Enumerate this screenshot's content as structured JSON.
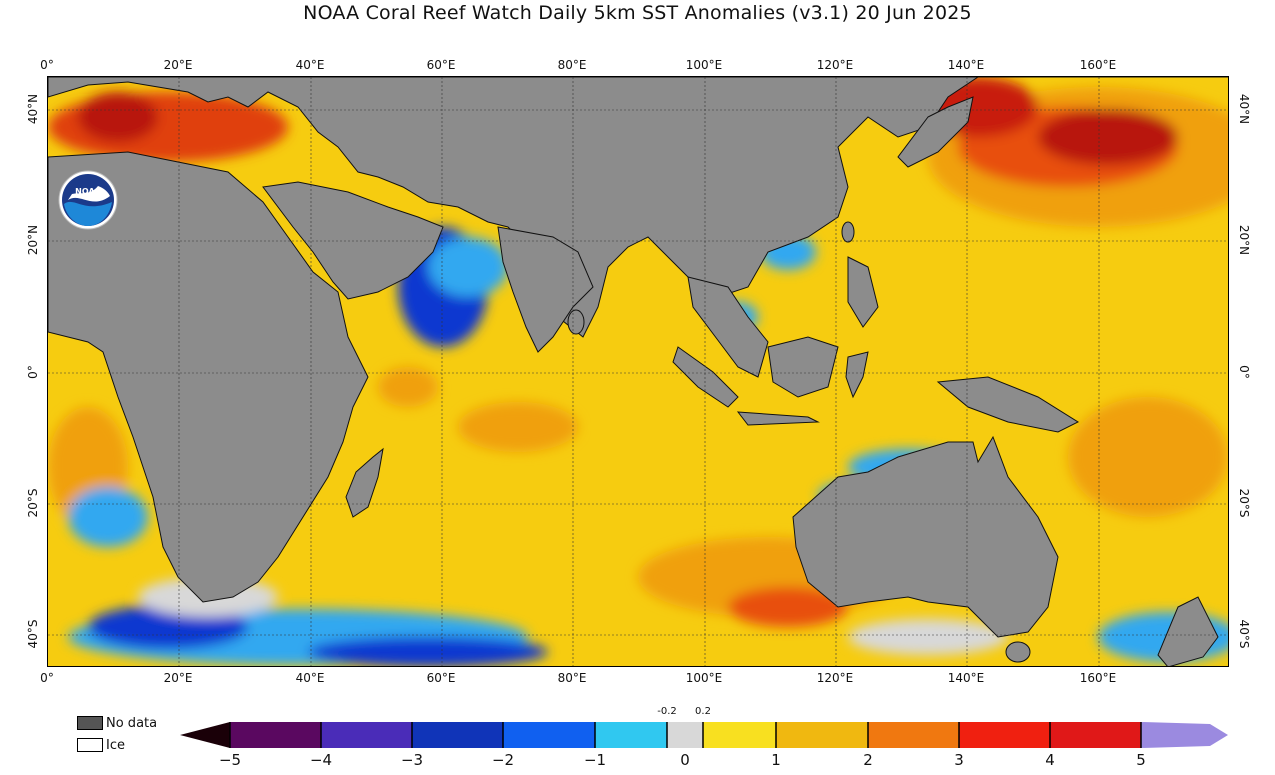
{
  "title": "NOAA Coral Reef Watch Daily 5km SST Anomalies  (v3.1)   20 Jun 2025",
  "map": {
    "lon_ticks": [
      "0°",
      "20°E",
      "40°E",
      "60°E",
      "80°E",
      "100°E",
      "120°E",
      "140°E",
      "160°E"
    ],
    "lat_ticks_left": [
      "40°N",
      "20°N",
      "0°",
      "20°S",
      "40°S"
    ],
    "lat_ticks_right": [
      "40°N",
      "20°N",
      "0°",
      "20°S",
      "40°S"
    ],
    "colors": {
      "land": "#8c8c8c",
      "ocean_base": "#f6cc10",
      "ocean_warm": "#f0a010",
      "ocean_hot": "#e85010",
      "ocean_very_hot": "#b81810",
      "ocean_cool": "#30a8f0",
      "ocean_cold": "#1038d0",
      "near_zero": "#d8d8d8"
    }
  },
  "logo": {
    "text": "NOAA",
    "icon": "noaa-logo-icon"
  },
  "legend": {
    "no_data_label": "No data",
    "ice_label": "Ice",
    "no_data_color": "#555555",
    "ice_color": "#ffffff"
  },
  "colorbar": {
    "ticks": [
      "−5",
      "−4",
      "−3",
      "−2",
      "−1",
      "0",
      "1",
      "2",
      "3",
      "4",
      "5"
    ],
    "small_ticks": [
      "-0.2",
      "0.2"
    ]
  }
}
